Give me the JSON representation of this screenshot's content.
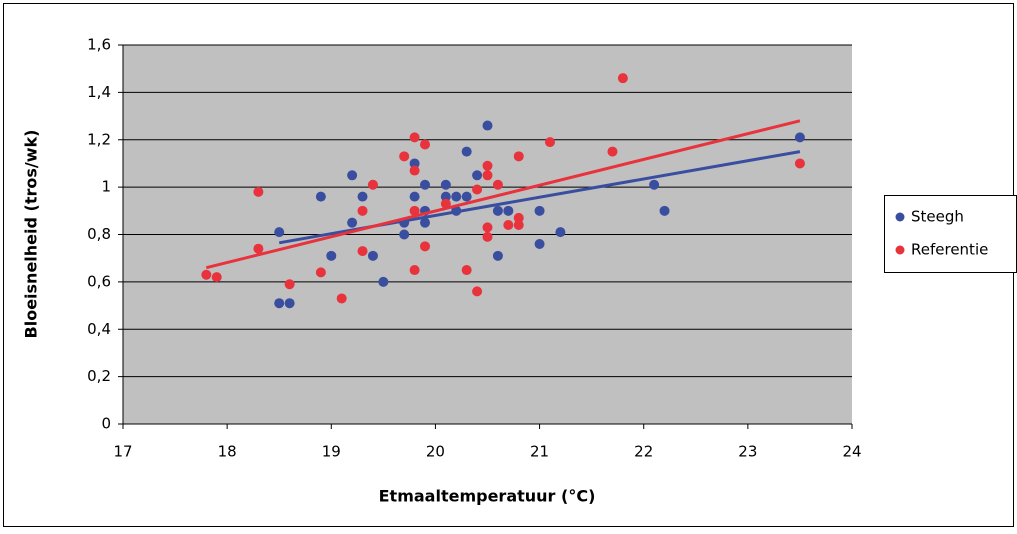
{
  "chart_data": {
    "type": "scatter",
    "x_label": "Etmaaltemperatuur (°C)",
    "y_label": "Bloeisnelheid (tros/wk)",
    "xlim": [
      17,
      24
    ],
    "xticks": [
      17,
      18,
      19,
      20,
      21,
      22,
      23,
      24
    ],
    "ylim": [
      0,
      1.6
    ],
    "yticks": [
      0,
      {
        "value": 0.2,
        "label": "0,2"
      },
      {
        "value": 0.4,
        "label": "0,4"
      },
      {
        "value": 0.6,
        "label": "0,6"
      },
      {
        "value": 0.8,
        "label": "0,8"
      },
      1,
      {
        "value": 1.2,
        "label": "1,2"
      },
      {
        "value": 1.4,
        "label": "1,4"
      },
      {
        "value": 1.6,
        "label": "1,6"
      }
    ],
    "grid": true,
    "plot_background": "#c0c0c0",
    "legend": "right",
    "series": [
      {
        "name": "Steegh",
        "color": "#3a4ea0",
        "x": [
          18.5,
          18.5,
          18.6,
          18.9,
          19.0,
          19.2,
          19.2,
          19.3,
          19.4,
          19.5,
          19.7,
          19.7,
          19.8,
          19.8,
          19.9,
          19.9,
          19.9,
          20.1,
          20.1,
          20.2,
          20.2,
          20.3,
          20.3,
          20.4,
          20.5,
          20.6,
          20.6,
          20.7,
          21.0,
          21.0,
          21.2,
          22.1,
          22.2,
          23.5
        ],
        "values": [
          0.81,
          0.51,
          0.51,
          0.96,
          0.71,
          1.05,
          0.85,
          0.96,
          0.71,
          0.6,
          0.8,
          0.85,
          1.1,
          0.96,
          1.01,
          0.9,
          0.85,
          1.01,
          0.96,
          0.96,
          0.9,
          1.15,
          0.96,
          1.05,
          1.26,
          0.9,
          0.71,
          0.9,
          0.9,
          0.76,
          0.81,
          1.01,
          0.9,
          1.21
        ],
        "trend": {
          "x": [
            18.5,
            23.5
          ],
          "values": [
            0.765,
            1.15
          ]
        }
      },
      {
        "name": "Referentie",
        "color": "#e8323c",
        "x": [
          17.8,
          17.9,
          18.3,
          18.3,
          18.6,
          18.9,
          19.1,
          19.3,
          19.3,
          19.4,
          19.7,
          19.8,
          19.8,
          19.8,
          19.8,
          19.9,
          19.9,
          20.1,
          20.3,
          20.4,
          20.4,
          20.5,
          20.5,
          20.5,
          20.5,
          20.6,
          20.7,
          20.8,
          20.8,
          20.8,
          21.1,
          21.7,
          21.8,
          23.5
        ],
        "values": [
          0.63,
          0.62,
          0.98,
          0.74,
          0.59,
          0.64,
          0.53,
          0.9,
          0.73,
          1.01,
          1.13,
          1.21,
          1.07,
          0.9,
          0.65,
          1.18,
          0.75,
          0.93,
          0.65,
          0.99,
          0.56,
          1.09,
          1.05,
          0.83,
          0.79,
          1.01,
          0.84,
          1.13,
          0.87,
          0.84,
          1.19,
          1.15,
          1.46,
          1.1
        ],
        "trend": {
          "x": [
            17.8,
            23.5
          ],
          "values": [
            0.66,
            1.28
          ]
        }
      }
    ]
  }
}
